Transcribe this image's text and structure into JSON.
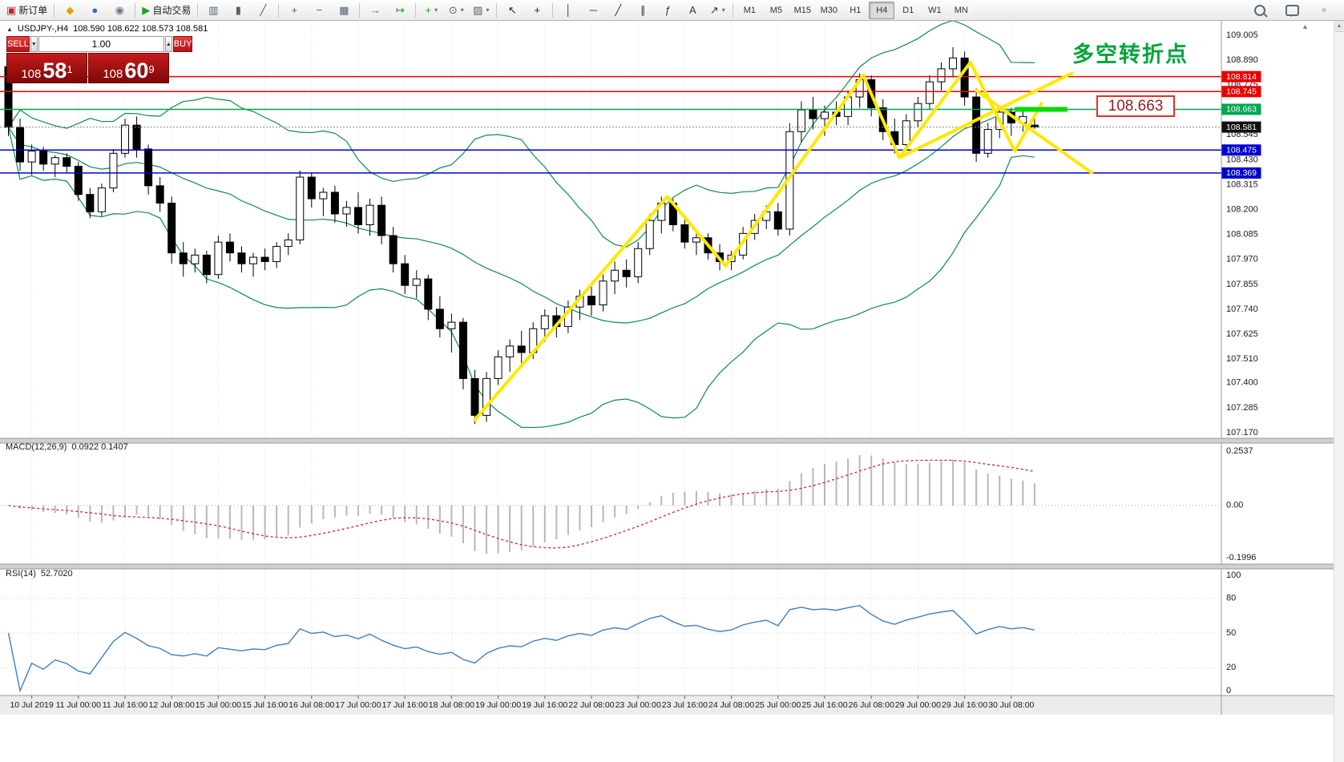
{
  "toolbar": {
    "buttons": [
      {
        "name": "new-order-button",
        "icon": "new-order-icon",
        "glyph": "▣",
        "color": "#b52b2b",
        "label": "新订单"
      },
      {
        "sep": true
      },
      {
        "name": "metaeditor-button",
        "icon": "metaeditor-icon",
        "glyph": "◆",
        "color": "#e0a400"
      },
      {
        "name": "market-button",
        "icon": "market-icon",
        "glyph": "●",
        "color": "#2a6fd4"
      },
      {
        "name": "signals-button",
        "icon": "signals-icon",
        "glyph": "◉",
        "color": "#6a7a88"
      },
      {
        "sep": true
      },
      {
        "name": "autotrading-button",
        "icon": "autotrading-icon",
        "glyph": "▶",
        "color": "#1fa01f",
        "label": "自动交易"
      },
      {
        "sep": true
      },
      {
        "name": "bar-chart-button",
        "icon": "bar-chart-icon",
        "glyph": "▥",
        "color": "#50606e"
      },
      {
        "name": "candlestick-button",
        "icon": "candlestick-icon",
        "glyph": "▮",
        "color": "#50606e"
      },
      {
        "name": "line-chart-button",
        "icon": "line-chart-icon",
        "glyph": "╱",
        "color": "#50606e"
      },
      {
        "sep": true
      },
      {
        "name": "zoom-in-button",
        "icon": "zoom-in-icon",
        "glyph": "+",
        "color": "#50606e"
      },
      {
        "name": "zoom-out-button",
        "icon": "zoom-out-icon",
        "glyph": "−",
        "color": "#50606e"
      },
      {
        "name": "tile-windows-button",
        "icon": "tile-windows-icon",
        "glyph": "▦",
        "color": "#50606e"
      },
      {
        "sep": true
      },
      {
        "name": "auto-scroll-button",
        "icon": "auto-scroll-icon",
        "glyph": "→",
        "color": "#1fa01f"
      },
      {
        "name": "chart-shift-button",
        "icon": "chart-shift-icon",
        "glyph": "↦",
        "color": "#1fa01f"
      },
      {
        "sep": true
      },
      {
        "name": "new-chart-button",
        "icon": "new-chart-icon",
        "glyph": "+",
        "color": "#1fa01f",
        "dropdown": true
      },
      {
        "name": "profiles-button",
        "icon": "profiles-icon",
        "glyph": "⊙",
        "color": "#50606e",
        "dropdown": true
      },
      {
        "name": "templates-button",
        "icon": "templates-icon",
        "glyph": "▨",
        "color": "#50606e",
        "dropdown": true
      },
      {
        "sep": true
      },
      {
        "name": "cursor-button",
        "icon": "cursor-icon",
        "glyph": "↖",
        "color": "#222222"
      },
      {
        "name": "crosshair-button",
        "icon": "crosshair-icon",
        "glyph": "+",
        "color": "#222222"
      },
      {
        "sep": true
      },
      {
        "name": "vertical-line-button",
        "icon": "vertical-line-icon",
        "glyph": "│",
        "color": "#333333"
      },
      {
        "name": "horizontal-line-button",
        "icon": "horizontal-line-icon",
        "glyph": "─",
        "color": "#333333"
      },
      {
        "name": "trendline-button",
        "icon": "trendline-icon",
        "glyph": "╱",
        "color": "#333333"
      },
      {
        "name": "channel-button",
        "icon": "equidistant-channel-icon",
        "glyph": "∥",
        "color": "#333333"
      },
      {
        "name": "fibonacci-button",
        "icon": "fibonacci-icon",
        "glyph": "ƒ",
        "color": "#333333"
      },
      {
        "name": "text-button",
        "icon": "text-icon",
        "glyph": "A",
        "color": "#333333"
      },
      {
        "name": "arrows-button",
        "icon": "arrows-icon",
        "glyph": "↗",
        "color": "#333333",
        "dropdown": true
      },
      {
        "sep": true
      }
    ],
    "timeframes": [
      "M1",
      "M5",
      "M15",
      "M30",
      "H1",
      "H4",
      "D1",
      "W1",
      "MN"
    ],
    "active_timeframe": "H4"
  },
  "chart": {
    "symbol_period": "USDJPY-,H4",
    "ohlc": "108.590 108.622 108.573 108.581"
  },
  "trade_panel": {
    "sell_label": "SELL",
    "buy_label": "BUY",
    "lot": "1.00",
    "sell_base": "108",
    "sell_big": "58",
    "sell_sup": "1",
    "buy_base": "108",
    "buy_big": "60",
    "buy_sup": "9"
  },
  "annotations": {
    "turning_point": "多空转折点",
    "price_box": "108.663"
  },
  "indicators": {
    "macd_name": "MACD(12,26,9)",
    "macd_values": "0.0922 0.1407",
    "macd_axis": [
      "0.2537",
      "0.00",
      "-0.1996"
    ],
    "rsi_name": "RSI(14)",
    "rsi_value": "52.7020",
    "rsi_axis": [
      "100",
      "80",
      "50",
      "20",
      "0"
    ]
  },
  "chart_data": {
    "type": "candlestick",
    "symbol": "USDJPY",
    "timeframe": "H4",
    "ylim": [
      107.17,
      109.005
    ],
    "price_axis_labels": [
      "109.005",
      "108.890",
      "108.775",
      "108.660",
      "108.545",
      "108.430",
      "108.315",
      "108.200",
      "108.085",
      "107.970",
      "107.855",
      "107.740",
      "107.625",
      "107.510",
      "107.400",
      "107.285",
      "107.170"
    ],
    "time_axis": {
      "start_index": 2,
      "step": 4,
      "labels": [
        "10 Jul 2019",
        "11 Jul 00:00",
        "11 Jul 16:00",
        "12 Jul 08:00",
        "15 Jul 00:00",
        "15 Jul 16:00",
        "16 Jul 08:00",
        "17 Jul 00:00",
        "17 Jul 16:00",
        "18 Jul 08:00",
        "19 Jul 00:00",
        "19 Jul 16:00",
        "22 Jul 08:00",
        "23 Jul 00:00",
        "23 Jul 16:00",
        "24 Jul 08:00",
        "25 Jul 00:00",
        "25 Jul 16:00",
        "26 Jul 08:00",
        "29 Jul 00:00",
        "29 Jul 16:00",
        "30 Jul 08:00"
      ]
    },
    "candles": [
      [
        108.86,
        108.9,
        108.54,
        108.58
      ],
      [
        108.58,
        108.62,
        108.38,
        108.42
      ],
      [
        108.42,
        108.5,
        108.36,
        108.47
      ],
      [
        108.47,
        108.49,
        108.38,
        108.41
      ],
      [
        108.41,
        108.45,
        108.35,
        108.44
      ],
      [
        108.44,
        108.46,
        108.37,
        108.4
      ],
      [
        108.4,
        108.42,
        108.24,
        108.27
      ],
      [
        108.27,
        108.3,
        108.16,
        108.19
      ],
      [
        108.19,
        108.32,
        108.17,
        108.3
      ],
      [
        108.3,
        108.48,
        108.28,
        108.46
      ],
      [
        108.46,
        108.62,
        108.44,
        108.59
      ],
      [
        108.59,
        108.63,
        108.44,
        108.48
      ],
      [
        108.48,
        108.5,
        108.27,
        108.31
      ],
      [
        108.31,
        108.35,
        108.19,
        108.23
      ],
      [
        108.23,
        108.26,
        107.95,
        108.0
      ],
      [
        108.0,
        108.05,
        107.89,
        107.95
      ],
      [
        107.95,
        108.02,
        107.91,
        107.99
      ],
      [
        107.99,
        108.01,
        107.86,
        107.9
      ],
      [
        107.9,
        108.08,
        107.88,
        108.05
      ],
      [
        108.05,
        108.09,
        107.96,
        108.0
      ],
      [
        108.0,
        108.03,
        107.91,
        107.95
      ],
      [
        107.95,
        108.0,
        107.89,
        107.98
      ],
      [
        107.98,
        108.02,
        107.92,
        107.96
      ],
      [
        107.96,
        108.05,
        107.93,
        108.03
      ],
      [
        108.03,
        108.09,
        107.99,
        108.06
      ],
      [
        108.06,
        108.38,
        108.04,
        108.35
      ],
      [
        108.35,
        108.37,
        108.21,
        108.25
      ],
      [
        108.25,
        108.3,
        108.17,
        108.28
      ],
      [
        108.28,
        108.31,
        108.14,
        108.18
      ],
      [
        108.18,
        108.24,
        108.12,
        108.21
      ],
      [
        108.21,
        108.28,
        108.09,
        108.13
      ],
      [
        108.13,
        108.25,
        108.08,
        108.22
      ],
      [
        108.22,
        108.26,
        108.04,
        108.08
      ],
      [
        108.08,
        108.12,
        107.91,
        107.95
      ],
      [
        107.95,
        107.99,
        107.81,
        107.85
      ],
      [
        107.85,
        107.92,
        107.79,
        107.88
      ],
      [
        107.88,
        107.9,
        107.69,
        107.74
      ],
      [
        107.74,
        107.8,
        107.61,
        107.65
      ],
      [
        107.65,
        107.72,
        107.54,
        107.68
      ],
      [
        107.68,
        107.7,
        107.37,
        107.42
      ],
      [
        107.42,
        107.46,
        107.21,
        107.25
      ],
      [
        107.25,
        107.45,
        107.22,
        107.42
      ],
      [
        107.42,
        107.55,
        107.39,
        107.52
      ],
      [
        107.52,
        107.6,
        107.45,
        107.57
      ],
      [
        107.57,
        107.64,
        107.49,
        107.54
      ],
      [
        107.54,
        107.68,
        107.51,
        107.65
      ],
      [
        107.65,
        107.74,
        107.59,
        107.71
      ],
      [
        107.71,
        107.75,
        107.61,
        107.66
      ],
      [
        107.66,
        107.78,
        107.63,
        107.75
      ],
      [
        107.75,
        107.83,
        107.69,
        107.8
      ],
      [
        107.8,
        107.85,
        107.71,
        107.76
      ],
      [
        107.76,
        107.9,
        107.73,
        107.87
      ],
      [
        107.87,
        107.96,
        107.81,
        107.92
      ],
      [
        107.92,
        107.97,
        107.84,
        107.89
      ],
      [
        107.89,
        108.05,
        107.86,
        108.02
      ],
      [
        108.02,
        108.18,
        107.99,
        108.15
      ],
      [
        108.15,
        108.26,
        108.09,
        108.23
      ],
      [
        108.23,
        108.25,
        108.1,
        108.13
      ],
      [
        108.13,
        108.17,
        108.02,
        108.05
      ],
      [
        108.05,
        108.1,
        107.99,
        108.07
      ],
      [
        108.07,
        108.09,
        107.97,
        108.0
      ],
      [
        108.0,
        108.04,
        107.92,
        107.96
      ],
      [
        107.96,
        108.01,
        107.92,
        107.99
      ],
      [
        107.99,
        108.12,
        107.97,
        108.09
      ],
      [
        108.09,
        108.18,
        108.06,
        108.15
      ],
      [
        108.15,
        108.22,
        108.11,
        108.19
      ],
      [
        108.19,
        108.23,
        108.08,
        108.11
      ],
      [
        108.11,
        108.6,
        108.08,
        108.56
      ],
      [
        108.56,
        108.7,
        108.51,
        108.66
      ],
      [
        108.66,
        108.72,
        108.57,
        108.62
      ],
      [
        108.62,
        108.68,
        108.54,
        108.65
      ],
      [
        108.65,
        108.7,
        108.59,
        108.63
      ],
      [
        108.63,
        108.75,
        108.59,
        108.72
      ],
      [
        108.72,
        108.83,
        108.67,
        108.8
      ],
      [
        108.8,
        108.82,
        108.63,
        108.67
      ],
      [
        108.67,
        108.71,
        108.52,
        108.56
      ],
      [
        108.56,
        108.62,
        108.46,
        108.5
      ],
      [
        108.5,
        108.64,
        108.48,
        108.61
      ],
      [
        108.61,
        108.72,
        108.58,
        108.69
      ],
      [
        108.69,
        108.82,
        108.66,
        108.79
      ],
      [
        108.79,
        108.88,
        108.75,
        108.85
      ],
      [
        108.85,
        108.95,
        108.81,
        108.9
      ],
      [
        108.9,
        108.93,
        108.68,
        108.72
      ],
      [
        108.72,
        108.76,
        108.42,
        108.46
      ],
      [
        108.46,
        108.6,
        108.44,
        108.57
      ],
      [
        108.57,
        108.68,
        108.53,
        108.65
      ],
      [
        108.65,
        108.67,
        108.54,
        108.6
      ],
      [
        108.6,
        108.66,
        108.56,
        108.63
      ],
      [
        108.59,
        108.622,
        108.573,
        108.581
      ]
    ],
    "bollinger": {
      "period": 20,
      "deviation": 2,
      "color": "#0e8c46"
    },
    "levels": [
      {
        "price": 108.814,
        "label": "108.814",
        "color": "#e80000"
      },
      {
        "price": 108.745,
        "label": "108.745",
        "color": "#e80000"
      },
      {
        "price": 108.663,
        "label": "108.663",
        "color": "#00a651"
      },
      {
        "price": 108.475,
        "label": "108.475",
        "color": "#0000cd"
      },
      {
        "price": 108.369,
        "label": "108.369",
        "color": "#0000cd"
      }
    ],
    "current_price": {
      "price": 108.581,
      "label": "108.581",
      "color": "#111111"
    },
    "drawings": {
      "trendlines": [
        {
          "points": [
            [
              40,
              107.23
            ],
            [
              56.5,
              108.26
            ],
            [
              61.5,
              107.94
            ],
            [
              73.3,
              108.82
            ],
            [
              76.4,
              108.44
            ],
            [
              82.5,
              108.88
            ],
            [
              86.3,
              108.47
            ],
            [
              88.6,
              108.69
            ]
          ],
          "color": "#ffe800",
          "width": 4
        },
        {
          "points": [
            [
              76.4,
              108.44
            ],
            [
              91.2,
              108.83
            ]
          ],
          "color": "#ffe800",
          "width": 4
        },
        {
          "points": [
            [
              83.0,
              108.75
            ],
            [
              92.9,
              108.37
            ]
          ],
          "color": "#ffe800",
          "width": 4
        }
      ],
      "highlight_segment": {
        "from_idx": 86.3,
        "to_idx": 90.8,
        "price": 108.663,
        "color": "#00dd00",
        "width": 6
      }
    },
    "macd": {
      "fast": 12,
      "slow": 26,
      "signal": 9,
      "bar_color": "#b8b8b8",
      "signal_color": "#dd2222"
    },
    "rsi": {
      "period": 14,
      "color": "#3e7fc1",
      "levels": [
        80,
        50,
        20
      ]
    }
  }
}
